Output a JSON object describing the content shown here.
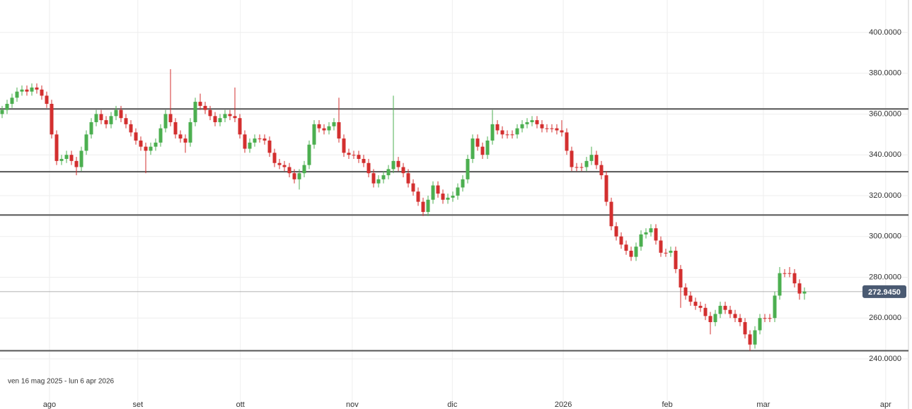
{
  "chart_data": {
    "type": "candlestick",
    "range_label": "ven 16 mag 2025 - lun 6 apr 2026",
    "up_color": "#4caf50",
    "down_color": "#d32f2f",
    "grid": true,
    "xlim": [
      -0.43,
      183
    ],
    "xticks": [
      {
        "value": 9.57,
        "label": "ago"
      },
      {
        "value": 27.4,
        "label": "set"
      },
      {
        "value": 48.1,
        "label": "ott"
      },
      {
        "value": 70.7,
        "label": "nov"
      },
      {
        "value": 90.9,
        "label": "dic"
      },
      {
        "value": 113.3,
        "label": "2026"
      },
      {
        "value": 134.3,
        "label": "feb"
      },
      {
        "value": 153.7,
        "label": "mar"
      },
      {
        "value": 178.4,
        "label": "apr"
      }
    ],
    "ylim": [
      221.3,
      415.9
    ],
    "yticks": [
      {
        "value": 240,
        "label": "240.0000"
      },
      {
        "value": 260,
        "label": "260.0000"
      },
      {
        "value": 280,
        "label": "280.0000"
      },
      {
        "value": 300,
        "label": "300.0000"
      },
      {
        "value": 320,
        "label": "320.0000"
      },
      {
        "value": 340,
        "label": "340.0000"
      },
      {
        "value": 360,
        "label": "360.0000"
      },
      {
        "value": 380,
        "label": "380.0000"
      },
      {
        "value": 400,
        "label": "400.0000"
      }
    ],
    "levels": [
      362.5,
      331.7,
      310.5,
      244.0
    ],
    "last_price": 272.945,
    "last_price_label": "272.9450",
    "open": [
      360,
      362,
      365,
      368,
      371,
      372,
      371,
      373,
      372,
      369,
      365,
      350,
      337,
      338,
      340,
      337,
      334,
      342,
      350,
      356,
      360,
      357,
      355,
      359,
      362,
      358,
      355,
      351,
      347,
      344,
      342,
      344,
      346,
      353,
      360,
      356,
      350,
      348,
      346,
      356,
      366,
      364,
      362,
      359,
      356,
      358,
      360,
      359,
      358,
      350,
      343,
      346,
      348,
      348,
      347,
      341,
      336,
      335,
      334,
      331,
      328,
      331,
      335,
      345,
      355,
      353,
      352,
      354,
      356,
      348,
      341,
      340,
      340,
      338,
      336,
      331,
      326,
      328,
      330,
      333,
      337,
      334,
      331,
      326,
      322,
      317,
      312,
      318,
      325,
      321,
      318,
      319,
      320,
      324,
      328,
      338,
      348,
      344,
      340,
      347,
      355,
      352,
      350,
      350,
      350,
      353,
      355,
      356,
      357,
      355,
      353,
      353,
      353,
      352,
      351,
      342,
      334,
      334,
      334,
      337,
      340,
      335,
      330,
      317,
      305,
      300,
      296,
      293,
      290,
      295,
      301,
      302,
      304,
      298,
      292,
      292,
      293,
      284,
      275,
      271,
      268,
      266,
      265,
      261,
      258,
      262,
      266,
      264,
      262,
      260,
      258,
      252,
      247,
      254,
      260,
      260,
      260,
      271,
      282,
      282,
      282,
      277,
      272
    ],
    "high": [
      364,
      367,
      370,
      373,
      374,
      374,
      375,
      375,
      374,
      371,
      367,
      352,
      340,
      342,
      342,
      339,
      344,
      352,
      358,
      362,
      362,
      359,
      361,
      364,
      364,
      360,
      357,
      353,
      349,
      346,
      346,
      348,
      355,
      362,
      382,
      358,
      352,
      350,
      358,
      368,
      370,
      366,
      364,
      361,
      360,
      362,
      362,
      373,
      360,
      352,
      348,
      350,
      350,
      350,
      349,
      343,
      338,
      337,
      336,
      333,
      333,
      337,
      347,
      357,
      357,
      355,
      356,
      358,
      368,
      350,
      343,
      342,
      342,
      340,
      338,
      333,
      330,
      332,
      335,
      369,
      339,
      336,
      333,
      328,
      324,
      319,
      320,
      327,
      327,
      323,
      321,
      322,
      326,
      330,
      340,
      350,
      350,
      346,
      349,
      362,
      357,
      354,
      352,
      352,
      355,
      357,
      358,
      359,
      359,
      357,
      355,
      355,
      355,
      357,
      353,
      344,
      336,
      336,
      339,
      344,
      342,
      337,
      332,
      319,
      307,
      302,
      298,
      295,
      297,
      303,
      304,
      306,
      306,
      300,
      294,
      295,
      295,
      286,
      277,
      273,
      270,
      268,
      267,
      263,
      264,
      268,
      268,
      266,
      264,
      262,
      260,
      254,
      256,
      262,
      262,
      262,
      273,
      285,
      284,
      285,
      284,
      279,
      275
    ],
    "low": [
      358,
      360,
      363,
      366,
      369,
      369,
      369,
      370,
      367,
      363,
      348,
      335,
      335,
      336,
      335,
      330,
      332,
      340,
      348,
      354,
      355,
      353,
      353,
      357,
      356,
      353,
      349,
      345,
      342,
      331,
      340,
      342,
      344,
      351,
      354,
      348,
      346,
      341,
      344,
      354,
      362,
      360,
      357,
      354,
      354,
      356,
      357,
      356,
      348,
      341,
      341,
      344,
      346,
      345,
      339,
      334,
      333,
      332,
      329,
      326,
      323,
      329,
      333,
      343,
      351,
      350,
      350,
      352,
      346,
      339,
      338,
      338,
      336,
      334,
      329,
      324,
      324,
      326,
      328,
      331,
      332,
      329,
      324,
      320,
      315,
      310,
      310,
      316,
      319,
      316,
      316,
      317,
      318,
      322,
      326,
      336,
      342,
      338,
      338,
      345,
      350,
      348,
      348,
      348,
      348,
      351,
      353,
      354,
      353,
      351,
      351,
      351,
      350,
      349,
      340,
      332,
      332,
      332,
      332,
      335,
      333,
      328,
      315,
      303,
      298,
      294,
      291,
      288,
      288,
      293,
      299,
      300,
      296,
      290,
      290,
      290,
      282,
      265,
      269,
      266,
      264,
      263,
      259,
      252,
      256,
      260,
      262,
      260,
      258,
      256,
      250,
      244,
      245,
      252,
      258,
      258,
      258,
      269,
      280,
      280,
      275,
      269,
      269
    ],
    "close": [
      362,
      365,
      368,
      371,
      372,
      371,
      373,
      372,
      369,
      365,
      350,
      337,
      338,
      340,
      337,
      334,
      342,
      350,
      356,
      360,
      357,
      355,
      359,
      362,
      358,
      355,
      351,
      347,
      344,
      342,
      344,
      346,
      353,
      360,
      356,
      350,
      348,
      346,
      356,
      366,
      364,
      362,
      359,
      356,
      358,
      360,
      359,
      358,
      350,
      343,
      346,
      348,
      348,
      347,
      341,
      336,
      335,
      334,
      331,
      328,
      331,
      335,
      345,
      355,
      353,
      352,
      354,
      356,
      348,
      341,
      340,
      340,
      338,
      336,
      331,
      326,
      328,
      330,
      333,
      337,
      334,
      331,
      326,
      322,
      317,
      312,
      318,
      325,
      321,
      318,
      319,
      320,
      324,
      328,
      338,
      348,
      344,
      340,
      347,
      355,
      352,
      350,
      350,
      350,
      353,
      355,
      356,
      357,
      355,
      353,
      353,
      353,
      352,
      351,
      342,
      334,
      334,
      334,
      337,
      340,
      335,
      330,
      317,
      305,
      300,
      296,
      293,
      290,
      295,
      301,
      302,
      304,
      298,
      292,
      292,
      293,
      284,
      275,
      271,
      268,
      266,
      265,
      261,
      258,
      262,
      266,
      264,
      262,
      260,
      258,
      252,
      247,
      254,
      260,
      260,
      260,
      271,
      282,
      282,
      282,
      277,
      272,
      273
    ]
  }
}
